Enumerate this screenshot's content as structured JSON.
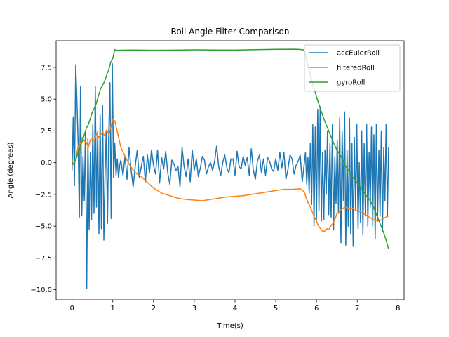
{
  "chart_data": {
    "type": "line",
    "title": "Roll Angle Filter Comparison",
    "xlabel": "Time(s)",
    "ylabel": "Angle (degrees)",
    "xlim": [
      -0.39,
      8.15
    ],
    "ylim": [
      -10.8,
      9.6
    ],
    "xticks": [
      0,
      1,
      2,
      3,
      4,
      5,
      6,
      7,
      8
    ],
    "yticks": [
      -10.0,
      -7.5,
      -5.0,
      -2.5,
      0.0,
      2.5,
      5.0,
      7.5
    ],
    "xtick_labels": [
      "0",
      "1",
      "2",
      "3",
      "4",
      "5",
      "6",
      "7",
      "8"
    ],
    "ytick_labels": [
      "−10.0",
      "−7.5",
      "−5.0",
      "−2.5",
      "0.0",
      "2.5",
      "5.0",
      "7.5"
    ],
    "grid": false,
    "legend_position": "top-right",
    "series": [
      {
        "name": "accEulerRoll",
        "color": "#1f77b4",
        "x": [
          0.0,
          0.03,
          0.06,
          0.09,
          0.12,
          0.15,
          0.18,
          0.21,
          0.24,
          0.27,
          0.3,
          0.33,
          0.36,
          0.39,
          0.42,
          0.45,
          0.48,
          0.51,
          0.54,
          0.57,
          0.6,
          0.63,
          0.66,
          0.69,
          0.72,
          0.75,
          0.78,
          0.81,
          0.84,
          0.87,
          0.9,
          0.93,
          0.96,
          0.99,
          1.02,
          1.05,
          1.08,
          1.11,
          1.14,
          1.17,
          1.2,
          1.25,
          1.3,
          1.35,
          1.4,
          1.45,
          1.5,
          1.55,
          1.6,
          1.65,
          1.7,
          1.75,
          1.8,
          1.85,
          1.9,
          1.95,
          2.0,
          2.05,
          2.1,
          2.15,
          2.2,
          2.25,
          2.3,
          2.35,
          2.4,
          2.45,
          2.5,
          2.55,
          2.6,
          2.65,
          2.7,
          2.75,
          2.8,
          2.85,
          2.9,
          2.95,
          3.0,
          3.05,
          3.1,
          3.15,
          3.2,
          3.25,
          3.3,
          3.35,
          3.4,
          3.45,
          3.5,
          3.55,
          3.6,
          3.65,
          3.7,
          3.75,
          3.8,
          3.85,
          3.9,
          3.95,
          4.0,
          4.05,
          4.1,
          4.15,
          4.2,
          4.25,
          4.3,
          4.35,
          4.4,
          4.45,
          4.5,
          4.55,
          4.6,
          4.65,
          4.7,
          4.75,
          4.8,
          4.85,
          4.9,
          4.95,
          5.0,
          5.05,
          5.1,
          5.15,
          5.2,
          5.25,
          5.3,
          5.35,
          5.4,
          5.45,
          5.5,
          5.55,
          5.6,
          5.65,
          5.7,
          5.73,
          5.76,
          5.79,
          5.82,
          5.85,
          5.88,
          5.91,
          5.94,
          5.97,
          6.0,
          6.03,
          6.06,
          6.09,
          6.12,
          6.15,
          6.18,
          6.21,
          6.24,
          6.27,
          6.3,
          6.33,
          6.36,
          6.39,
          6.42,
          6.45,
          6.48,
          6.51,
          6.54,
          6.57,
          6.6,
          6.63,
          6.66,
          6.69,
          6.72,
          6.75,
          6.78,
          6.81,
          6.84,
          6.87,
          6.9,
          6.93,
          6.96,
          6.99,
          7.02,
          7.05,
          7.08,
          7.11,
          7.14,
          7.17,
          7.2,
          7.23,
          7.26,
          7.29,
          7.32,
          7.35,
          7.38,
          7.41,
          7.44,
          7.47,
          7.5,
          7.53,
          7.56,
          7.59,
          7.62,
          7.65,
          7.68,
          7.71,
          7.74,
          7.77
        ],
        "values": [
          -0.6,
          3.6,
          -1.8,
          7.7,
          5.0,
          1.5,
          -4.3,
          6.0,
          -4.2,
          0.5,
          -3.0,
          2.5,
          -9.9,
          1.9,
          -5.3,
          0.8,
          -4.5,
          3.0,
          -4.0,
          6.0,
          -3.5,
          2.5,
          -5.6,
          3.8,
          -5.2,
          4.5,
          -6.1,
          -1.0,
          2.5,
          -4.8,
          2.0,
          6.3,
          -4.4,
          7.8,
          -1.2,
          1.5,
          -1.0,
          0.3,
          -1.2,
          -0.2,
          0.2,
          -1.0,
          0.5,
          -1.3,
          1.2,
          -0.6,
          -1.9,
          -0.3,
          1.0,
          -1.2,
          -0.3,
          0.5,
          -1.5,
          0.6,
          -0.8,
          1.0,
          -0.2,
          -0.9,
          1.0,
          -1.6,
          0.4,
          -0.5,
          0.9,
          -0.8,
          -1.7,
          0.2,
          -0.1,
          -0.6,
          -0.3,
          -1.9,
          1.2,
          -0.3,
          -1.1,
          0.3,
          -1.5,
          1.0,
          -0.6,
          0.3,
          -1.1,
          -0.4,
          0.5,
          0.2,
          -0.9,
          -0.3,
          0.0,
          -0.6,
          0.1,
          1.3,
          -0.3,
          -1.0,
          0.0,
          0.6,
          -0.4,
          -0.8,
          0.3,
          0.3,
          -1.0,
          0.9,
          -0.3,
          -0.5,
          0.5,
          -0.2,
          0.4,
          -1.0,
          1.1,
          -0.6,
          -1.3,
          0.1,
          0.6,
          -0.8,
          0.3,
          -1.0,
          0.4,
          0.1,
          -0.5,
          -0.7,
          0.3,
          -0.6,
          0.8,
          -0.4,
          0.8,
          -1.3,
          -0.5,
          0.6,
          0.3,
          -0.9,
          -0.2,
          0.1,
          0.6,
          -1.5,
          -0.1,
          0.8,
          -1.7,
          0.4,
          -2.4,
          1.5,
          -3.3,
          3.0,
          -5.0,
          2.8,
          -4.5,
          4.2,
          -3.8,
          4.4,
          -4.6,
          0.8,
          -4.5,
          1.0,
          -2.5,
          2.5,
          -4.1,
          1.5,
          -4.3,
          3.0,
          -5.3,
          0.5,
          -3.2,
          1.8,
          -4.0,
          3.5,
          -6.3,
          2.5,
          -3.0,
          4.0,
          -6.5,
          1.0,
          -5.0,
          3.5,
          -5.6,
          1.5,
          -6.6,
          2.0,
          -3.8,
          3.0,
          -5.2,
          0.0,
          -4.7,
          2.5,
          -5.7,
          1.5,
          -4.2,
          3.0,
          -5.0,
          0.8,
          -3.5,
          2.8,
          -5.0,
          2.2,
          -6.0,
          3.0,
          -4.5,
          1.0,
          -4.2,
          2.5,
          -5.4,
          1.2,
          -3.0,
          3.0,
          -4.2,
          1.2
        ]
      },
      {
        "name": "filteredRoll",
        "color": "#ff7f0e",
        "x": [
          0.0,
          0.05,
          0.1,
          0.15,
          0.2,
          0.25,
          0.3,
          0.35,
          0.4,
          0.45,
          0.5,
          0.55,
          0.6,
          0.65,
          0.7,
          0.75,
          0.8,
          0.85,
          0.9,
          0.95,
          1.0,
          1.05,
          1.1,
          1.15,
          1.2,
          1.3,
          1.4,
          1.5,
          1.6,
          1.7,
          1.8,
          1.9,
          2.0,
          2.1,
          2.2,
          2.4,
          2.6,
          2.8,
          3.0,
          3.2,
          3.4,
          3.6,
          3.8,
          4.0,
          4.2,
          4.4,
          4.6,
          4.8,
          5.0,
          5.2,
          5.4,
          5.6,
          5.7,
          5.75,
          5.8,
          5.85,
          5.9,
          5.95,
          6.0,
          6.05,
          6.1,
          6.15,
          6.2,
          6.25,
          6.3,
          6.35,
          6.4,
          6.45,
          6.5,
          6.55,
          6.6,
          6.7,
          6.8,
          6.9,
          7.0,
          7.1,
          7.2,
          7.3,
          7.4,
          7.5,
          7.6,
          7.7,
          7.77
        ],
        "values": [
          -0.2,
          -0.1,
          0.4,
          1.3,
          1.5,
          2.0,
          1.7,
          1.6,
          1.2,
          1.8,
          1.9,
          1.7,
          2.3,
          2.0,
          2.2,
          2.4,
          2.1,
          2.6,
          2.2,
          2.8,
          3.4,
          3.3,
          2.6,
          1.9,
          1.2,
          0.5,
          -0.1,
          -0.6,
          -0.9,
          -1.1,
          -1.4,
          -1.7,
          -2.0,
          -2.2,
          -2.4,
          -2.6,
          -2.8,
          -2.9,
          -2.95,
          -3.0,
          -2.9,
          -2.8,
          -2.7,
          -2.65,
          -2.6,
          -2.5,
          -2.4,
          -2.3,
          -2.2,
          -2.1,
          -2.1,
          -2.05,
          -2.3,
          -2.8,
          -3.2,
          -3.5,
          -3.9,
          -4.3,
          -4.6,
          -5.0,
          -5.2,
          -5.4,
          -5.4,
          -5.2,
          -5.3,
          -5.0,
          -4.8,
          -4.5,
          -4.0,
          -3.9,
          -3.7,
          -3.5,
          -3.6,
          -3.6,
          -3.8,
          -3.9,
          -4.1,
          -4.3,
          -4.5,
          -4.6,
          -4.5,
          -4.3,
          -4.2
        ]
      },
      {
        "name": "gyroRoll",
        "color": "#2ca02c",
        "x": [
          0.0,
          0.05,
          0.1,
          0.15,
          0.2,
          0.25,
          0.3,
          0.35,
          0.4,
          0.45,
          0.5,
          0.55,
          0.6,
          0.65,
          0.7,
          0.75,
          0.8,
          0.85,
          0.9,
          0.95,
          1.0,
          1.05,
          1.1,
          1.5,
          2.0,
          2.5,
          3.0,
          3.5,
          4.0,
          4.5,
          5.0,
          5.5,
          5.65,
          5.7,
          5.8,
          5.9,
          6.0,
          6.1,
          6.2,
          6.3,
          6.4,
          6.5,
          6.6,
          6.7,
          6.8,
          6.9,
          7.0,
          7.1,
          7.2,
          7.3,
          7.4,
          7.5,
          7.6,
          7.7,
          7.77
        ],
        "values": [
          0.0,
          -0.1,
          0.3,
          0.8,
          1.2,
          1.7,
          2.2,
          2.7,
          3.0,
          3.5,
          4.0,
          4.3,
          4.7,
          5.3,
          5.8,
          6.1,
          6.4,
          6.9,
          7.3,
          7.9,
          8.2,
          8.9,
          8.85,
          8.87,
          8.85,
          8.86,
          8.88,
          8.87,
          8.86,
          8.9,
          8.92,
          8.93,
          8.9,
          8.85,
          7.5,
          6.3,
          5.2,
          4.2,
          3.3,
          2.5,
          1.7,
          1.0,
          0.5,
          -0.2,
          -0.7,
          -1.2,
          -1.6,
          -2.0,
          -2.5,
          -2.9,
          -3.5,
          -4.3,
          -5.1,
          -6.0,
          -6.8
        ]
      }
    ]
  }
}
